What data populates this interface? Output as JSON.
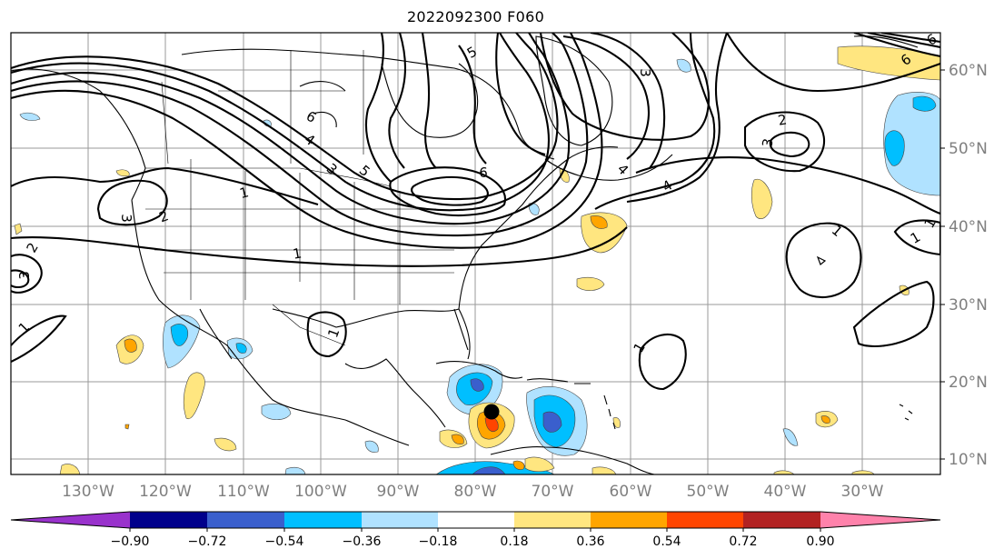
{
  "title": "2022092300 F060",
  "map": {
    "lon_labels": [
      "130°W",
      "120°W",
      "110°W",
      "100°W",
      "90°W",
      "80°W",
      "70°W",
      "60°W",
      "50°W",
      "40°W",
      "30°W"
    ],
    "lat_labels": [
      "60°N",
      "50°N",
      "40°N",
      "30°N",
      "20°N",
      "10°N"
    ]
  },
  "contour_labels": [
    "6",
    "5",
    "4",
    "3",
    "2",
    "1",
    "1",
    "3",
    "4",
    "5",
    "6",
    "3",
    "2",
    "3",
    "4",
    "1",
    "1",
    "1",
    "2",
    "3",
    "1",
    "1",
    "6",
    "6",
    "1"
  ],
  "colorbar": {
    "tick_labels": [
      "−0.90",
      "−0.72",
      "−0.54",
      "−0.36",
      "−0.18",
      "0.18",
      "0.36",
      "0.54",
      "0.72",
      "0.90"
    ],
    "colors": [
      "#9932cc",
      "#00008b",
      "#3a5fcd",
      "#00bfff",
      "#b0e2ff",
      "#ffffff",
      "#ffe680",
      "#ffa500",
      "#ff4500",
      "#b22222",
      "#ff82ab"
    ]
  },
  "marker": {
    "type": "storm-center",
    "color": "#000000"
  }
}
